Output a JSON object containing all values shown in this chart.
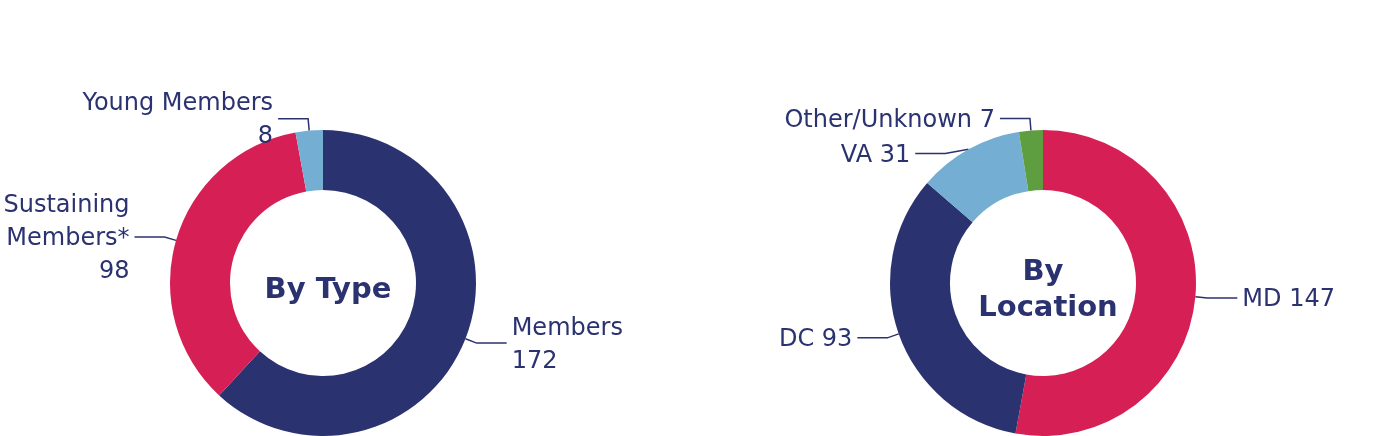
{
  "chart_data": [
    {
      "type": "donut",
      "title": "By Type",
      "categories": [
        "Members",
        "Sustaining Members*",
        "Young Members"
      ],
      "values": [
        172,
        98,
        8
      ],
      "colors": [
        "#2b3270",
        "#d61f55",
        "#74aed3"
      ],
      "data_labels": true,
      "legend": false
    },
    {
      "type": "donut",
      "title": "By Location",
      "categories": [
        "MD",
        "DC",
        "VA",
        "Other/Unknown"
      ],
      "values": [
        147,
        93,
        31,
        7
      ],
      "colors": [
        "#d61f55",
        "#2b3270",
        "#74aed3",
        "#5e9e40"
      ],
      "data_labels": true,
      "legend": false
    }
  ]
}
